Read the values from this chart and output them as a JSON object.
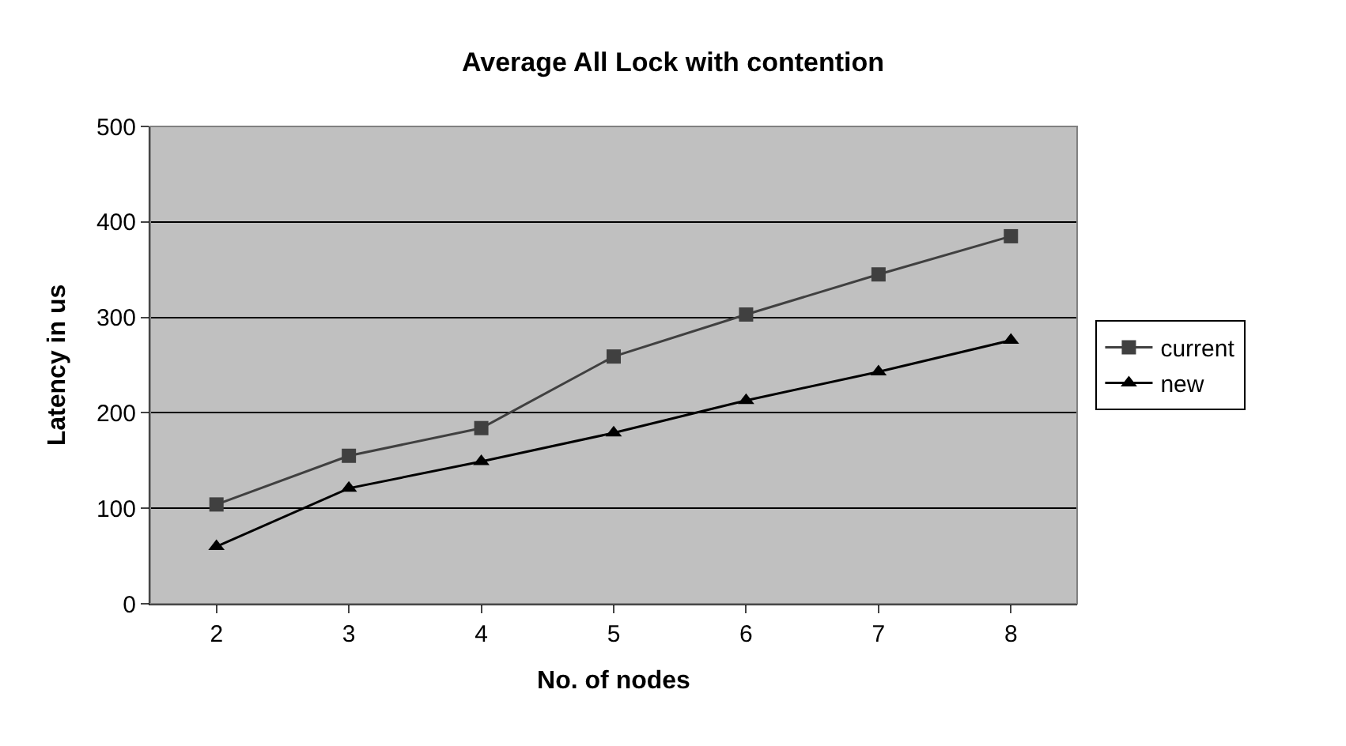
{
  "chart_data": {
    "type": "line",
    "title": "Average All Lock with contention",
    "xlabel": "No. of nodes",
    "ylabel": "Latency in us",
    "categories": [
      "2",
      "3",
      "4",
      "5",
      "6",
      "7",
      "8"
    ],
    "series": [
      {
        "name": "current",
        "color": "#404040",
        "marker": "square",
        "values": [
          104,
          155,
          184,
          259,
          303,
          345,
          385
        ]
      },
      {
        "name": "new",
        "color": "#000000",
        "marker": "triangle",
        "values": [
          60,
          121,
          149,
          179,
          213,
          243,
          276
        ]
      }
    ],
    "ylim": [
      0,
      500
    ],
    "yticks": [
      0,
      100,
      200,
      300,
      400,
      500
    ],
    "grid": "y",
    "legend": "right"
  }
}
